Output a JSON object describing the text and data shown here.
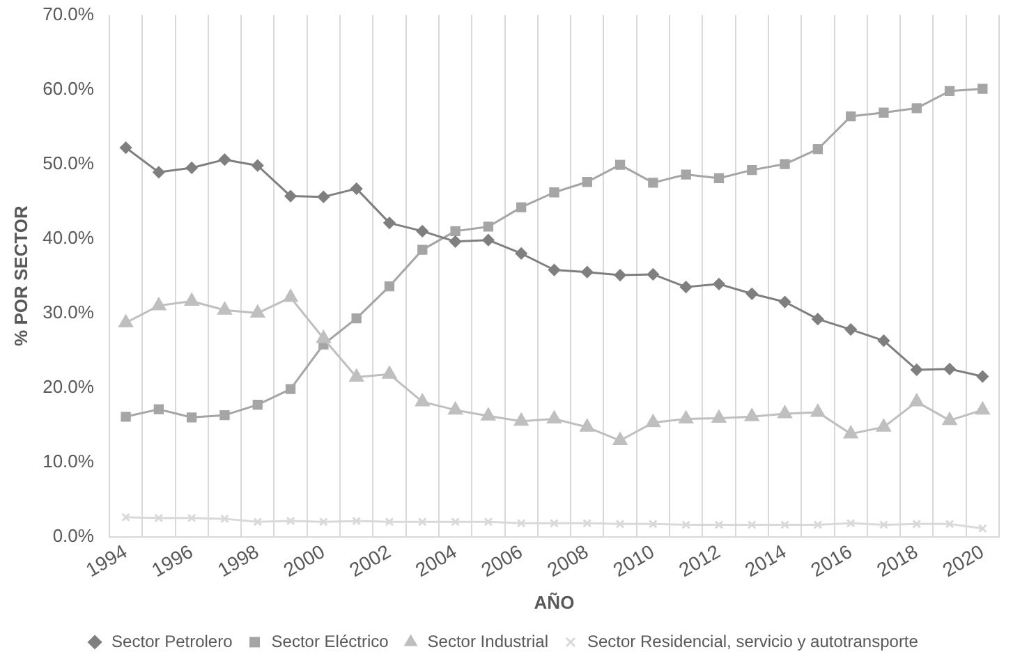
{
  "chart_data": {
    "type": "line",
    "xlabel": "AÑO",
    "ylabel": "% POR SECTOR",
    "categories": [
      "1994",
      null,
      "1996",
      null,
      "1998",
      null,
      "2000",
      null,
      "2002",
      null,
      "2004",
      null,
      "2006",
      null,
      "2008",
      null,
      "2010",
      null,
      "2012",
      null,
      "2014",
      null,
      "2016",
      null,
      "2018",
      null,
      "2020"
    ],
    "series": [
      {
        "name": "Sector Petrolero",
        "color": "#7f7f7f",
        "marker": "diamond",
        "values": [
          52.2,
          48.9,
          49.5,
          50.6,
          49.8,
          45.7,
          45.6,
          46.7,
          42.1,
          41.0,
          39.6,
          39.8,
          38.0,
          35.8,
          35.5,
          35.1,
          35.2,
          33.5,
          33.9,
          32.6,
          31.5,
          29.2,
          27.8,
          26.3,
          22.4,
          22.5,
          21.5
        ]
      },
      {
        "name": "Sector Eléctrico",
        "color": "#a5a5a5",
        "marker": "square",
        "values": [
          16.1,
          17.1,
          16.0,
          16.3,
          17.7,
          19.8,
          25.8,
          29.3,
          33.6,
          38.5,
          41.0,
          41.6,
          44.2,
          46.2,
          47.6,
          49.9,
          47.5,
          48.6,
          48.1,
          49.2,
          50.0,
          52.0,
          56.4,
          56.9,
          57.5,
          59.8,
          60.1
        ]
      },
      {
        "name": "Sector Industrial",
        "color": "#bfbfbf",
        "marker": "triangle",
        "values": [
          28.7,
          31.0,
          31.6,
          30.4,
          30.0,
          32.1,
          26.6,
          21.4,
          21.8,
          18.1,
          17.0,
          16.2,
          15.5,
          15.8,
          14.7,
          12.9,
          15.3,
          15.8,
          15.9,
          16.1,
          16.5,
          16.7,
          13.8,
          14.7,
          18.1,
          15.6,
          17.0
        ]
      },
      {
        "name": "Sector Residencial, servicio y autotransporte",
        "color": "#d9d9d9",
        "marker": "cross",
        "values": [
          2.6,
          2.5,
          2.5,
          2.4,
          2.0,
          2.1,
          2.0,
          2.1,
          2.0,
          2.0,
          2.0,
          2.0,
          1.8,
          1.8,
          1.8,
          1.7,
          1.7,
          1.6,
          1.6,
          1.6,
          1.6,
          1.6,
          1.8,
          1.6,
          1.7,
          1.7,
          1.1
        ]
      }
    ],
    "ylim": [
      0,
      70
    ],
    "yticks": [
      {
        "value": 0,
        "label": "0.0%"
      },
      {
        "value": 10,
        "label": "10.0%"
      },
      {
        "value": 20,
        "label": "20.0%"
      },
      {
        "value": 30,
        "label": "30.0%"
      },
      {
        "value": 40,
        "label": "40.0%"
      },
      {
        "value": 50,
        "label": "50.0%"
      },
      {
        "value": 60,
        "label": "60.0%"
      },
      {
        "value": 70,
        "label": "70.0%"
      }
    ],
    "grid": "x",
    "legend": "bottom",
    "line_style": "solid"
  }
}
